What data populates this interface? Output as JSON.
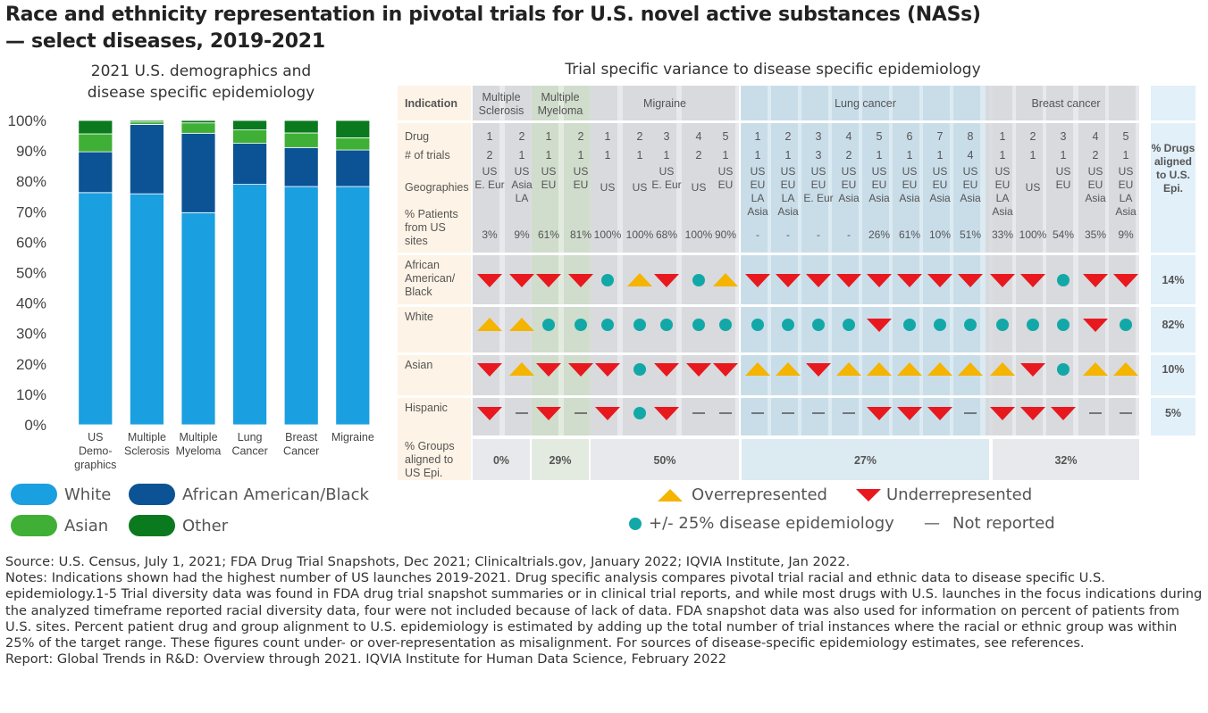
{
  "title": "Race and ethnicity representation in pivotal trials for U.S. novel active substances (NASs) — select diseases, 2019-2021",
  "title_line1": "Race and ethnicity representation in pivotal trials for U.S. novel active substances (NASs)",
  "title_line2": "— select diseases, 2019-2021",
  "left_title_line1": "2021 U.S. demographics and",
  "left_title_line2": "disease specific epidemiology",
  "right_title": "Trial specific variance to disease specific epidemiology",
  "colors": {
    "white": "#1a9fe0",
    "black": "#0b5394",
    "asian": "#3fb035",
    "other": "#0b7a1f",
    "over": "#f5b400",
    "under": "#e8181f",
    "aligned": "#13a8a8",
    "label_bg": "#fdf3e6",
    "grey_bg": "#e8e9ec",
    "grey_dark": "#d5d7db",
    "green_bg": "#e3ebe0",
    "green_dark": "#ccd9c8",
    "blue_bg": "#dceaf2",
    "blue_dark": "#c5dbe7",
    "pct_bg": "#e1f0f9"
  },
  "chart_data": {
    "type": "bar",
    "stacked": true,
    "categories": [
      "US Demo-graphics",
      "Multiple Sclerosis",
      "Multiple Myeloma",
      "Lung Cancer",
      "Breast Cancer",
      "Migraine"
    ],
    "category_lines": [
      [
        "US",
        "Demo-",
        "graphics"
      ],
      [
        "Multiple",
        "Sclerosis"
      ],
      [
        "Multiple",
        "Myeloma"
      ],
      [
        "Lung",
        "Cancer"
      ],
      [
        "Breast",
        "Cancer"
      ],
      [
        "Migraine"
      ]
    ],
    "series": [
      {
        "name": "White",
        "color_key": "white",
        "values": [
          76.3,
          75.9,
          69.7,
          79.0,
          78.3,
          78.3
        ]
      },
      {
        "name": "African American/Black",
        "color_key": "black",
        "values": [
          13.4,
          22.8,
          26.1,
          13.5,
          12.8,
          12.0
        ]
      },
      {
        "name": "Asian",
        "color_key": "asian",
        "values": [
          5.9,
          0.8,
          3.4,
          4.4,
          4.8,
          4.0
        ]
      },
      {
        "name": "Other",
        "color_key": "other",
        "values": [
          4.4,
          0.5,
          0.8,
          3.1,
          4.1,
          5.7
        ]
      }
    ],
    "yticks": [
      "0%",
      "10%",
      "20%",
      "30%",
      "40%",
      "50%",
      "60%",
      "70%",
      "80%",
      "90%",
      "100%"
    ],
    "ylim": [
      0,
      100
    ],
    "xlabel": "",
    "ylabel": ""
  },
  "matrix": {
    "header_label": "Indication",
    "indications": [
      {
        "name_lines": [
          "Multiple",
          "Sclerosis"
        ],
        "scheme": "grey",
        "groups_pct": "0%"
      },
      {
        "name_lines": [
          "Multiple",
          "Myeloma"
        ],
        "scheme": "green",
        "groups_pct": "29%"
      },
      {
        "name_lines": [
          "Migraine"
        ],
        "scheme": "grey",
        "groups_pct": "50%"
      },
      {
        "name_lines": [
          "Lung cancer"
        ],
        "scheme": "blue",
        "groups_pct": "27%"
      },
      {
        "name_lines": [
          "Breast cancer"
        ],
        "scheme": "grey",
        "groups_pct": "32%"
      }
    ],
    "row_labels": {
      "drug": "Drug",
      "trials": "# of trials",
      "geo": "Geographies",
      "pct_lines": [
        "% Patients",
        "from US",
        "sites"
      ],
      "groups_lines": [
        "% Groups",
        "aligned to",
        "US Epi."
      ]
    },
    "race_labels": [
      [
        "African",
        "American/",
        "Black"
      ],
      [
        "White"
      ],
      [
        "Asian"
      ],
      [
        "Hispanic"
      ]
    ],
    "aligned_header_lines": [
      "% Drugs",
      "aligned",
      "to U.S.",
      "Epi."
    ],
    "aligned_pct": [
      "14%",
      "82%",
      "10%",
      "5%"
    ],
    "drugs": [
      {
        "ind": 0,
        "drug": "1",
        "trials": "2",
        "geo": [
          "US",
          "E. Eur"
        ],
        "pct": "3%",
        "marks": [
          "U",
          "O",
          "U",
          "U"
        ]
      },
      {
        "ind": 0,
        "drug": "2",
        "trials": "1",
        "geo": [
          "US",
          "Asia",
          "LA"
        ],
        "pct": "9%",
        "marks": [
          "U",
          "O",
          "O",
          "N"
        ]
      },
      {
        "ind": 1,
        "drug": "1",
        "trials": "1",
        "geo": [
          "US",
          "EU"
        ],
        "pct": "61%",
        "marks": [
          "U",
          "A",
          "U",
          "U"
        ]
      },
      {
        "ind": 1,
        "drug": "2",
        "trials": "1",
        "geo": [
          "US",
          "EU"
        ],
        "pct": "81%",
        "marks": [
          "U",
          "A",
          "U",
          "N"
        ]
      },
      {
        "ind": 2,
        "drug": "1",
        "trials": "1",
        "geo": [
          "US"
        ],
        "pct": "100%",
        "marks": [
          "A",
          "A",
          "U",
          "U"
        ]
      },
      {
        "ind": 2,
        "drug": "2",
        "trials": "1",
        "geo": [
          "US"
        ],
        "pct": "100%",
        "marks": [
          "O",
          "A",
          "A",
          "A"
        ]
      },
      {
        "ind": 2,
        "drug": "3",
        "trials": "1",
        "geo": [
          "US",
          "E. Eur"
        ],
        "pct": "68%",
        "marks": [
          "U",
          "A",
          "U",
          "U"
        ]
      },
      {
        "ind": 2,
        "drug": "4",
        "trials": "2",
        "geo": [
          "US"
        ],
        "pct": "100%",
        "marks": [
          "A",
          "A",
          "U",
          "N"
        ]
      },
      {
        "ind": 2,
        "drug": "5",
        "trials": "1",
        "geo": [
          "US",
          "EU"
        ],
        "pct": "90%",
        "marks": [
          "O",
          "A",
          "U",
          "N"
        ]
      },
      {
        "ind": 3,
        "drug": "1",
        "trials": "1",
        "geo": [
          "US",
          "EU",
          "LA",
          "Asia"
        ],
        "pct": "-",
        "marks": [
          "U",
          "A",
          "O",
          "N"
        ]
      },
      {
        "ind": 3,
        "drug": "2",
        "trials": "1",
        "geo": [
          "US",
          "EU",
          "LA",
          "Asia"
        ],
        "pct": "-",
        "marks": [
          "U",
          "A",
          "O",
          "N"
        ]
      },
      {
        "ind": 3,
        "drug": "3",
        "trials": "3",
        "geo": [
          "US",
          "EU",
          "E. Eur"
        ],
        "pct": "-",
        "marks": [
          "U",
          "A",
          "U",
          "N"
        ]
      },
      {
        "ind": 3,
        "drug": "4",
        "trials": "2",
        "geo": [
          "US",
          "EU",
          "Asia"
        ],
        "pct": "-",
        "marks": [
          "U",
          "A",
          "O",
          "N"
        ]
      },
      {
        "ind": 3,
        "drug": "5",
        "trials": "1",
        "geo": [
          "US",
          "EU",
          "Asia"
        ],
        "pct": "26%",
        "marks": [
          "U",
          "U",
          "O",
          "U"
        ]
      },
      {
        "ind": 3,
        "drug": "6",
        "trials": "1",
        "geo": [
          "US",
          "EU",
          "Asia"
        ],
        "pct": "61%",
        "marks": [
          "U",
          "A",
          "O",
          "U"
        ]
      },
      {
        "ind": 3,
        "drug": "7",
        "trials": "1",
        "geo": [
          "US",
          "EU",
          "Asia"
        ],
        "pct": "10%",
        "marks": [
          "U",
          "A",
          "O",
          "U"
        ]
      },
      {
        "ind": 3,
        "drug": "8",
        "trials": "4",
        "geo": [
          "US",
          "EU",
          "Asia"
        ],
        "pct": "51%",
        "marks": [
          "U",
          "A",
          "O",
          "N"
        ]
      },
      {
        "ind": 4,
        "drug": "1",
        "trials": "1",
        "geo": [
          "US",
          "EU",
          "LA",
          "Asia"
        ],
        "pct": "33%",
        "marks": [
          "U",
          "A",
          "O",
          "U"
        ]
      },
      {
        "ind": 4,
        "drug": "2",
        "trials": "1",
        "geo": [
          "US"
        ],
        "pct": "100%",
        "marks": [
          "U",
          "A",
          "U",
          "U"
        ]
      },
      {
        "ind": 4,
        "drug": "3",
        "trials": "1",
        "geo": [
          "US",
          "EU"
        ],
        "pct": "54%",
        "marks": [
          "A",
          "A",
          "A",
          "U"
        ]
      },
      {
        "ind": 4,
        "drug": "4",
        "trials": "2",
        "geo": [
          "US",
          "EU",
          "Asia"
        ],
        "pct": "35%",
        "marks": [
          "U",
          "U",
          "O",
          "N"
        ]
      },
      {
        "ind": 4,
        "drug": "5",
        "trials": "1",
        "geo": [
          "US",
          "EU",
          "LA",
          "Asia"
        ],
        "pct": "9%",
        "marks": [
          "U",
          "A",
          "O",
          "N"
        ]
      }
    ]
  },
  "legend_left": [
    "White",
    "African American/Black",
    "Asian",
    "Other"
  ],
  "legend_right": {
    "over": "Overrepresented",
    "under": "Underrepresented",
    "aligned": "+/- 25% disease epidemiology",
    "not_reported_symbol": "—",
    "not_reported": "Not reported"
  },
  "footer": {
    "source": "Source: U.S. Census, July 1, 2021; FDA Drug Trial Snapshots, Dec 2021; Clinicaltrials.gov, January 2022; IQVIA Institute, Jan 2022.",
    "notes": "Notes: Indications shown had the highest number of US launches 2019-2021. Drug specific analysis compares pivotal trial racial and ethnic data to disease specific U.S. epidemiology.1-5 Trial diversity data was found in FDA drug trial snapshot summaries or in clinical trial reports, and while most drugs with U.S. launches in the focus indications during the analyzed timeframe reported racial diversity data, four were not included because of lack of data. FDA snapshot data was also used for information on percent of patients from U.S. sites. Percent patient drug and group alignment to U.S. epidemiology is estimated by adding up the total number of trial instances where the racial or ethnic group was within 25% of the target range. These figures count under- or over-representation as misalignment. For sources of disease-specific epidemiology estimates, see references.",
    "report": "Report: Global Trends in R&D: Overview through 2021. IQVIA Institute for Human Data Science, February 2022"
  }
}
